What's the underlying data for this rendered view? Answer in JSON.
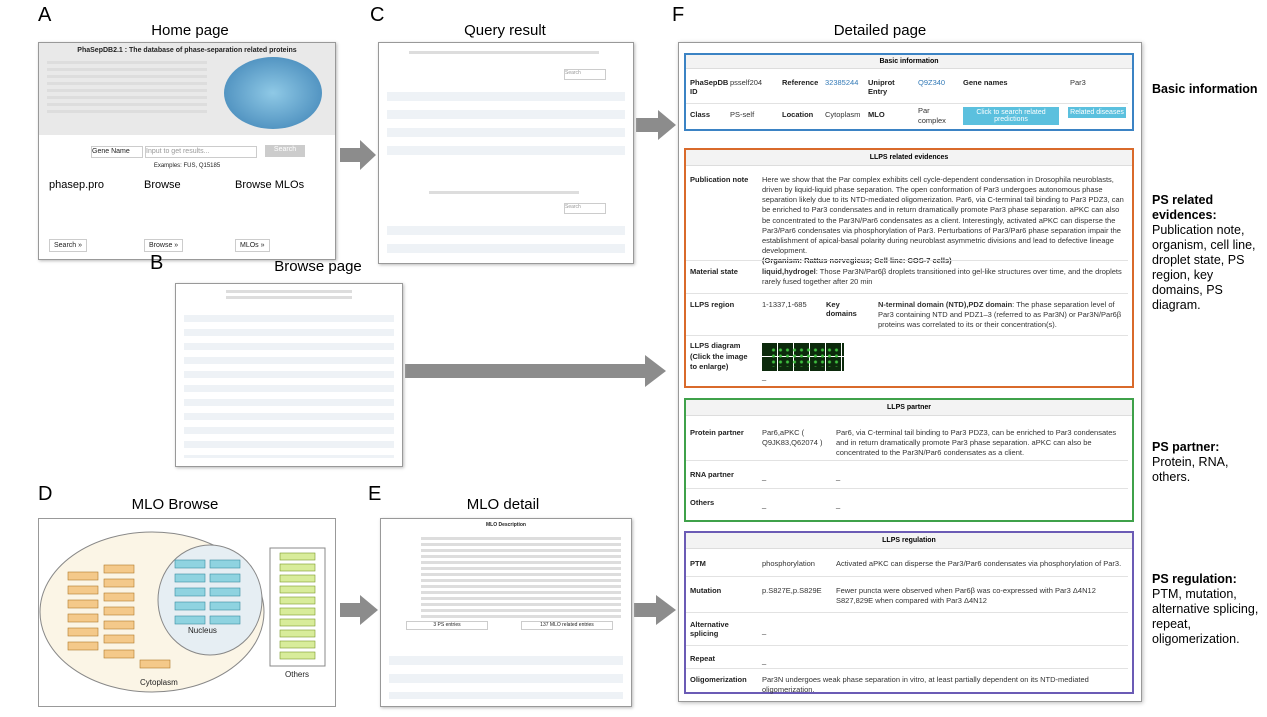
{
  "panels": {
    "A": {
      "label": "A",
      "title": "Home page",
      "site_title": "PhaSepDB2.1 : The database of phase-separation related proteins",
      "search_select": "Gene Name",
      "search_placeholder": "Input to get results...",
      "search_button": "Search",
      "examples": "Examples: FUS, Q15185",
      "features": [
        {
          "name": "phasep.pro",
          "button": "Search »"
        },
        {
          "name": "Browse",
          "button": "Browse »"
        },
        {
          "name": "Browse MLOs",
          "button": "MLOs »"
        }
      ]
    },
    "B": {
      "label": "B",
      "title": "Browse page"
    },
    "C": {
      "label": "C",
      "title": "Query result",
      "search": "Search"
    },
    "D": {
      "label": "D",
      "title": "MLO Browse",
      "nucleus": "Nucleus",
      "cytoplasm": "Cytoplasm",
      "others": "Others"
    },
    "E": {
      "label": "E",
      "title": "MLO detail",
      "header": "MLO Description",
      "buttons": [
        "3 PS entries",
        "137 MLO related entries"
      ]
    },
    "F": {
      "label": "F",
      "title": "Detailed page",
      "basic": {
        "header": "Basic information",
        "row1": [
          "PhaSepDB ID",
          "psself204",
          "Reference",
          "32385244",
          "Uniprot Entry",
          "Q9Z340",
          "Gene names",
          "Par3"
        ],
        "row2": [
          "Class",
          "PS-self",
          "Location",
          "Cytoplasm",
          "MLO",
          "Par complex"
        ],
        "buttons": [
          "Click to search related predictions",
          "Related diseases"
        ]
      },
      "evidence": {
        "header": "LLPS related evidences",
        "publication_label": "Publication note",
        "publication_text": "Here we show that the Par complex exhibits cell cycle-dependent condensation in Drosophila neuroblasts, driven by liquid-liquid phase separation. The open conformation of Par3 undergoes autonomous phase separation likely due to its NTD-mediated oligomerization. Par6, via C-terminal tail binding to Par3 PDZ3, can be enriched to Par3 condensates and in return dramatically promote Par3 phase separation. aPKC can also be concentrated to the Par3N/Par6 condensates as a client. Interestingly, activated aPKC can disperse the Par3/Par6 condensates via phosphorylation of Par3. Perturbations of Par3/Par6 phase separation impair the establishment of apical-basal polarity during neuroblast asymmetric divisions and lead to defective lineage development.",
        "organism": "(Organism: Rattus norvegicus; Cell line: COS-7 cells)",
        "material_label": "Material state",
        "material_state": "liquid,hydrogel",
        "material_text": ": Those Par3N/Par6β droplets transitioned into gel-like structures over time, and the droplets rarely fused together after 20 min",
        "region_label": "LLPS region",
        "region": "1-1337,1-685",
        "domains_label": "Key domains",
        "domains": "N-terminal domain (NTD),PDZ domain",
        "domains_text": ": The phase separation level of Par3 containing NTD and PDZ1–3 (referred to as Par3N) or Par3N/Par6β proteins was correlated to its or their concentration(s).",
        "diagram_label": "LLPS diagram (Click the image to enlarge)",
        "diagram_value": "_"
      },
      "partner": {
        "header": "LLPS partner",
        "rows": [
          [
            "Protein partner",
            "Par6,aPKC ( Q9JK83,Q62074 )",
            "Par6, via C-terminal tail binding to Par3 PDZ3, can be enriched to Par3 condensates and in return dramatically promote Par3 phase separation. aPKC can also be concentrated to the Par3N/Par6 condensates as a client."
          ],
          [
            "RNA partner",
            "_",
            "_"
          ],
          [
            "Others",
            "_",
            "_"
          ]
        ]
      },
      "regulation": {
        "header": "LLPS regulation",
        "rows": [
          [
            "PTM",
            "phosphorylation",
            "Activated aPKC can disperse the Par3/Par6 condensates via phosphorylation of Par3."
          ],
          [
            "Mutation",
            "p.S827E,p.S829E",
            "Fewer puncta were observed when Par6β was co-expressed with Par3 Δ4N12 S827,829E when compared with Par3 Δ4N12"
          ],
          [
            "Alternative splicing",
            "_"
          ],
          [
            "Repeat",
            "_"
          ],
          [
            "Oligomerization",
            "Par3N undergoes weak phase separation in vitro, at least partially dependent on its NTD-mediated oligomerization."
          ]
        ]
      }
    }
  },
  "annotations": [
    {
      "title": "Basic information"
    },
    {
      "title": "PS related evidences:",
      "detail": "Publication note, organism, cell line, droplet state, PS region, key domains, PS diagram."
    },
    {
      "title": "PS partner:",
      "detail": "Protein, RNA, others."
    },
    {
      "title": "PS regulation:",
      "detail": "PTM, mutation, alternative splicing, repeat, oligomerization."
    }
  ]
}
